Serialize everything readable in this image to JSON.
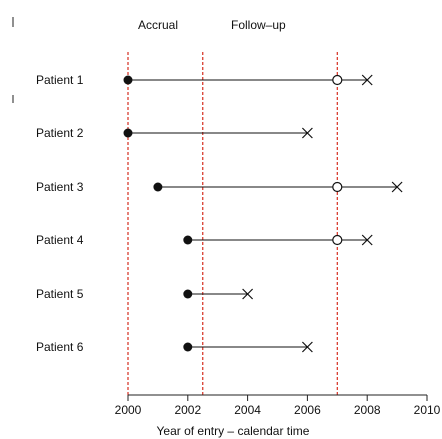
{
  "chart_data": {
    "type": "timeline",
    "xlabel": "Year of entry – calendar time",
    "xlim": [
      2000,
      2010
    ],
    "xticks": [
      2000,
      2002,
      2004,
      2006,
      2008,
      2010
    ],
    "top_labels": [
      "Accrual",
      "Follow–up"
    ],
    "reference_lines": [
      {
        "x": 2000,
        "color": "#d62d20"
      },
      {
        "x": 2002.5,
        "color": "#d62d20"
      },
      {
        "x": 2007,
        "color": "#d62d20"
      }
    ],
    "patients": [
      {
        "label": "Patient 1",
        "entry": 2000,
        "censor": 2007,
        "event": 2008
      },
      {
        "label": "Patient 2",
        "entry": 2000,
        "censor": null,
        "event": 2006
      },
      {
        "label": "Patient 3",
        "entry": 2001,
        "censor": 2007,
        "event": 2009
      },
      {
        "label": "Patient 4",
        "entry": 2002,
        "censor": 2007,
        "event": 2008
      },
      {
        "label": "Patient 5",
        "entry": 2002,
        "censor": null,
        "event": 2004
      },
      {
        "label": "Patient 6",
        "entry": 2002,
        "censor": null,
        "event": 2006
      }
    ],
    "legend": "none",
    "grid": false
  }
}
